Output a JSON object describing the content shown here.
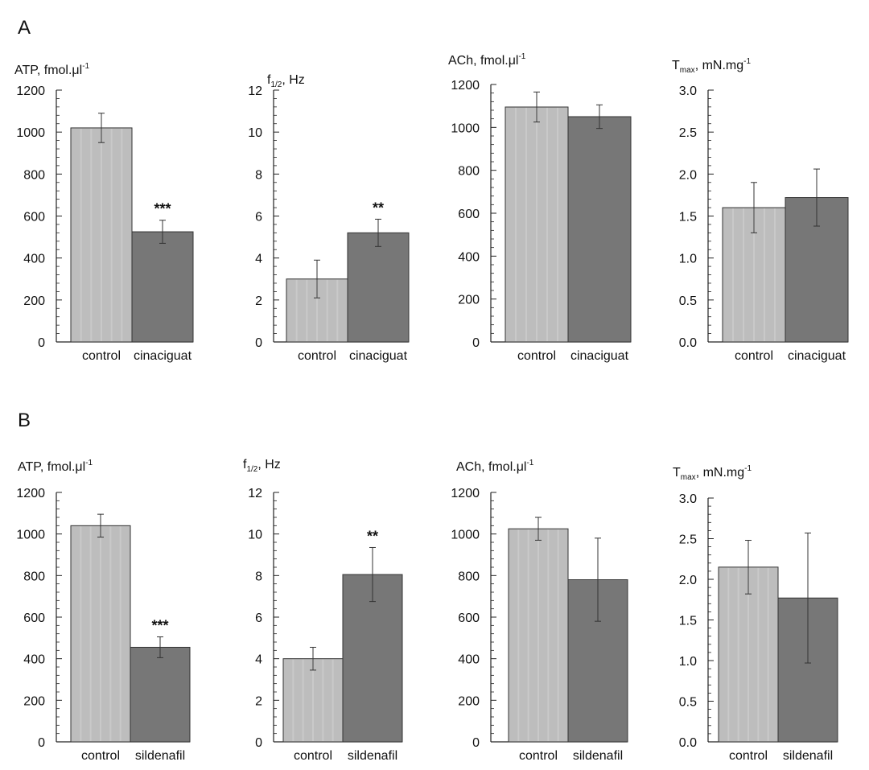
{
  "panels": [
    {
      "letter": "A"
    },
    {
      "letter": "B"
    }
  ],
  "chart_data": [
    {
      "panel": "A",
      "type": "bar",
      "title": "ATP, fmol.μl",
      "title_sup": "-1",
      "title_sub": "",
      "ylabel": "",
      "xlabel": "",
      "categories": [
        "control",
        "cinaciguat"
      ],
      "values": [
        1020,
        525
      ],
      "errors": [
        70,
        55
      ],
      "annotations": [
        "",
        "***"
      ],
      "ylim": [
        0,
        1200
      ],
      "yticks": [
        "0",
        "200",
        "400",
        "600",
        "800",
        "1000",
        "1200"
      ],
      "bar_colors": [
        "#bdbdbd",
        "#777777"
      ],
      "grid": false
    },
    {
      "panel": "A",
      "type": "bar",
      "title": "f",
      "title_sub": "1/2",
      "title_suffix": ", Hz",
      "title_sup": "",
      "ylabel": "",
      "xlabel": "",
      "categories": [
        "control",
        "cinaciguat"
      ],
      "values": [
        3.0,
        5.2
      ],
      "errors": [
        0.9,
        0.65
      ],
      "annotations": [
        "",
        "**"
      ],
      "ylim": [
        0,
        12
      ],
      "yticks": [
        "0",
        "2",
        "4",
        "6",
        "8",
        "10",
        "12"
      ],
      "bar_colors": [
        "#bdbdbd",
        "#777777"
      ],
      "grid": false
    },
    {
      "panel": "A",
      "type": "bar",
      "title": "ACh, fmol.μl",
      "title_sup": "-1",
      "title_sub": "",
      "ylabel": "",
      "xlabel": "",
      "categories": [
        "control",
        "cinaciguat"
      ],
      "values": [
        1095,
        1050
      ],
      "errors": [
        70,
        55
      ],
      "annotations": [
        "",
        ""
      ],
      "ylim": [
        0,
        1200
      ],
      "yticks": [
        "0",
        "200",
        "400",
        "600",
        "800",
        "1000",
        "1200"
      ],
      "bar_colors": [
        "#bdbdbd",
        "#777777"
      ],
      "grid": false
    },
    {
      "panel": "A",
      "type": "bar",
      "title": "T",
      "title_sub": "max",
      "title_suffix": ", mN.mg",
      "title_sup": "-1",
      "ylabel": "",
      "xlabel": "",
      "categories": [
        "control",
        "cinaciguat"
      ],
      "values": [
        1.6,
        1.72
      ],
      "errors": [
        0.3,
        0.34
      ],
      "annotations": [
        "",
        ""
      ],
      "ylim": [
        0,
        3.0
      ],
      "yticks": [
        "0.0",
        "0.5",
        "1.0",
        "1.5",
        "2.0",
        "2.5",
        "3.0"
      ],
      "bar_colors": [
        "#bdbdbd",
        "#777777"
      ],
      "grid": false
    },
    {
      "panel": "B",
      "type": "bar",
      "title": "ATP, fmol.μl",
      "title_sup": "-1",
      "title_sub": "",
      "ylabel": "",
      "xlabel": "",
      "categories": [
        "control",
        "sildenafil"
      ],
      "values": [
        1040,
        455
      ],
      "errors": [
        55,
        50
      ],
      "annotations": [
        "",
        "***"
      ],
      "ylim": [
        0,
        1200
      ],
      "yticks": [
        "0",
        "200",
        "400",
        "600",
        "800",
        "1000",
        "1200"
      ],
      "bar_colors": [
        "#bdbdbd",
        "#777777"
      ],
      "grid": false
    },
    {
      "panel": "B",
      "type": "bar",
      "title": "f",
      "title_sub": "1/2",
      "title_suffix": ", Hz",
      "title_sup": "",
      "ylabel": "",
      "xlabel": "",
      "categories": [
        "control",
        "sildenafil"
      ],
      "values": [
        4.0,
        8.05
      ],
      "errors": [
        0.55,
        1.3
      ],
      "annotations": [
        "",
        "**"
      ],
      "ylim": [
        0,
        12
      ],
      "yticks": [
        "0",
        "2",
        "4",
        "6",
        "8",
        "10",
        "12"
      ],
      "bar_colors": [
        "#bdbdbd",
        "#777777"
      ],
      "grid": false
    },
    {
      "panel": "B",
      "type": "bar",
      "title": "ACh, fmol.μl",
      "title_sup": "-1",
      "title_sub": "",
      "ylabel": "",
      "xlabel": "",
      "categories": [
        "control",
        "sildenafil"
      ],
      "values": [
        1025,
        780
      ],
      "errors": [
        55,
        200
      ],
      "annotations": [
        "",
        ""
      ],
      "ylim": [
        0,
        1200
      ],
      "yticks": [
        "0",
        "200",
        "400",
        "600",
        "800",
        "1000",
        "1200"
      ],
      "bar_colors": [
        "#bdbdbd",
        "#777777"
      ],
      "grid": false
    },
    {
      "panel": "B",
      "type": "bar",
      "title": "T",
      "title_sub": "max",
      "title_suffix": ", mN.mg",
      "title_sup": "-1",
      "ylabel": "",
      "xlabel": "",
      "categories": [
        "control",
        "sildenafil"
      ],
      "values": [
        2.15,
        1.77
      ],
      "errors": [
        0.33,
        0.8
      ],
      "annotations": [
        "",
        ""
      ],
      "ylim": [
        0,
        3.0
      ],
      "yticks": [
        "0.0",
        "0.5",
        "1.0",
        "1.5",
        "2.0",
        "2.5",
        "3.0"
      ],
      "bar_colors": [
        "#bdbdbd",
        "#777777"
      ],
      "grid": false
    }
  ]
}
